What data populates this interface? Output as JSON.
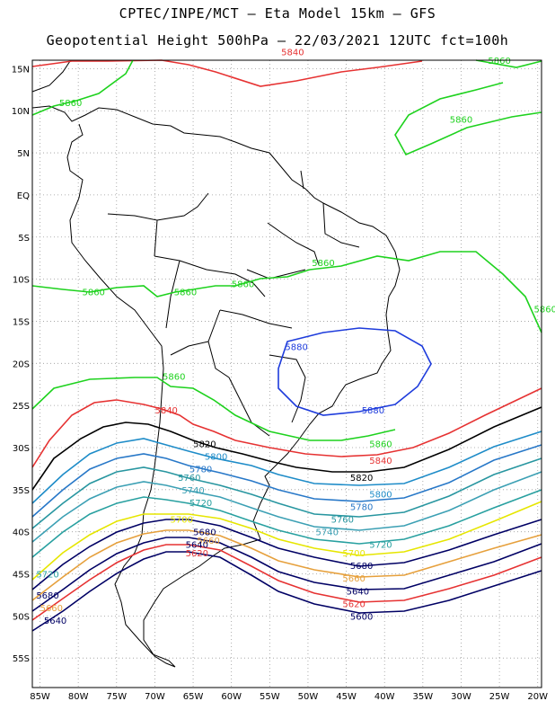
{
  "header": {
    "title_line1": "CPTEC/INPE/MCT –  Eta Model 15km – GFS",
    "title_line2": "Geopotential Height 500hPa – 22/03/2021 12UTC fct=100h"
  },
  "axes": {
    "lat_labels": [
      "15N",
      "10N",
      "5N",
      "EQ",
      "5S",
      "10S",
      "15S",
      "20S",
      "25S",
      "30S",
      "35S",
      "40S",
      "45S",
      "50S",
      "55S"
    ],
    "lon_labels": [
      "85W",
      "80W",
      "75W",
      "70W",
      "65W",
      "60W",
      "55W",
      "50W",
      "45W",
      "40W",
      "35W",
      "30W",
      "25W",
      "20W"
    ],
    "grid": "dotted"
  },
  "contour_colors": {
    "5880": "#1e3cdc",
    "5860": "#1ed21e",
    "5840": "#e63232",
    "5820": "#000000",
    "5800": "#1e8cc8",
    "5780": "#2878c8",
    "5760": "#2896a0",
    "5740": "#3ca0b4",
    "5720": "#28a0a0",
    "5700": "#e6e600",
    "5680": "#e6a03c",
    "5660": "#000064",
    "5640": "#e63232",
    "5620": "#000064",
    "5600": "#000064"
  },
  "contour_labels": [
    {
      "text": "5840",
      "lon": -52,
      "lat": 17,
      "color": "5840"
    },
    {
      "text": "5860",
      "lon": -81,
      "lat": 11,
      "color": "5860"
    },
    {
      "text": "5860",
      "lon": -25,
      "lat": 16,
      "color": "5860"
    },
    {
      "text": "5860",
      "lon": -30,
      "lat": 9,
      "color": "5860"
    },
    {
      "text": "5860",
      "lon": -48,
      "lat": -8,
      "color": "5860"
    },
    {
      "text": "5860",
      "lon": -78,
      "lat": -11.5,
      "color": "5860"
    },
    {
      "text": "5860",
      "lon": -66,
      "lat": -11.5,
      "color": "5860"
    },
    {
      "text": "5860",
      "lon": -58.5,
      "lat": -10.5,
      "color": "5860"
    },
    {
      "text": "5860",
      "lon": -19,
      "lat": -13.5,
      "color": "5860"
    },
    {
      "text": "5860",
      "lon": -67.5,
      "lat": -21.5,
      "color": "5860"
    },
    {
      "text": "5860",
      "lon": -40.5,
      "lat": -29.5,
      "color": "5860"
    },
    {
      "text": "5880",
      "lon": -51.5,
      "lat": -18,
      "color": "5880"
    },
    {
      "text": "5880",
      "lon": -41.5,
      "lat": -25.5,
      "color": "5880"
    },
    {
      "text": "5840",
      "lon": -68.5,
      "lat": -25.5,
      "color": "5840"
    },
    {
      "text": "5840",
      "lon": -40.5,
      "lat": -31.5,
      "color": "5840"
    },
    {
      "text": "5820",
      "lon": -63.5,
      "lat": -29.5,
      "color": "5820"
    },
    {
      "text": "5820",
      "lon": -43,
      "lat": -33.5,
      "color": "5820"
    },
    {
      "text": "5800",
      "lon": -62,
      "lat": -31,
      "color": "5800"
    },
    {
      "text": "5800",
      "lon": -40.5,
      "lat": -35.5,
      "color": "5800"
    },
    {
      "text": "5780",
      "lon": -64,
      "lat": -32.5,
      "color": "5780"
    },
    {
      "text": "5780",
      "lon": -43,
      "lat": -37,
      "color": "5780"
    },
    {
      "text": "5760",
      "lon": -65.5,
      "lat": -33.5,
      "color": "5760"
    },
    {
      "text": "5760",
      "lon": -45.5,
      "lat": -38.5,
      "color": "5760"
    },
    {
      "text": "5740",
      "lon": -65,
      "lat": -35,
      "color": "5740"
    },
    {
      "text": "5740",
      "lon": -47.5,
      "lat": -40,
      "color": "5740"
    },
    {
      "text": "5720",
      "lon": -64,
      "lat": -36.5,
      "color": "5720"
    },
    {
      "text": "5720",
      "lon": -40.5,
      "lat": -41.5,
      "color": "5720"
    },
    {
      "text": "5720",
      "lon": -84,
      "lat": -45,
      "color": "5720"
    },
    {
      "text": "5700",
      "lon": -66.5,
      "lat": -38.5,
      "color": "5700"
    },
    {
      "text": "5700",
      "lon": -44,
      "lat": -42.5,
      "color": "5700"
    },
    {
      "text": "5680",
      "lon": -63.5,
      "lat": -40,
      "color": "5660"
    },
    {
      "text": "5680",
      "lon": -43,
      "lat": -44,
      "color": "5660"
    },
    {
      "text": "5680",
      "lon": -84,
      "lat": -47.5,
      "color": "5660"
    },
    {
      "text": "5660",
      "lon": -63,
      "lat": -41,
      "color": "5680"
    },
    {
      "text": "5660",
      "lon": -44,
      "lat": -45.5,
      "color": "5680"
    },
    {
      "text": "5660",
      "lon": -83.5,
      "lat": -49,
      "color": "5680"
    },
    {
      "text": "5640",
      "lon": -64.5,
      "lat": -41.5,
      "color": "5620"
    },
    {
      "text": "5640",
      "lon": -43.5,
      "lat": -47,
      "color": "5620"
    },
    {
      "text": "5640",
      "lon": -83,
      "lat": -50.5,
      "color": "5620"
    },
    {
      "text": "5620",
      "lon": -64.5,
      "lat": -42.5,
      "color": "5640"
    },
    {
      "text": "5620",
      "lon": -44,
      "lat": -48.5,
      "color": "5640"
    },
    {
      "text": "5600",
      "lon": -43,
      "lat": -50,
      "color": "5600"
    }
  ]
}
